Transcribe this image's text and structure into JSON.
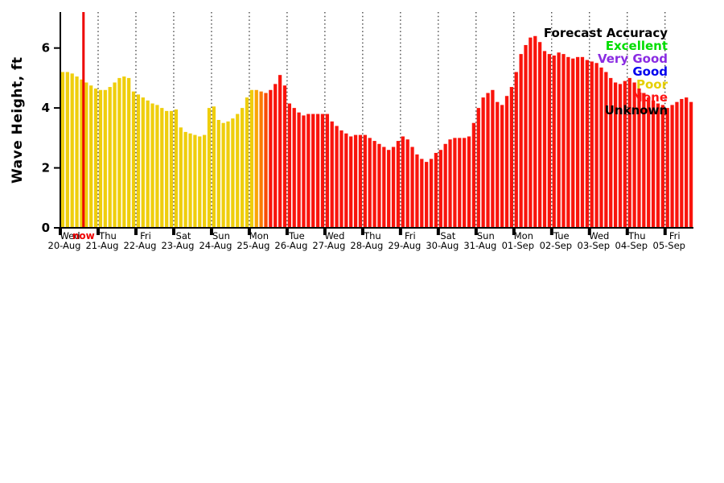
{
  "chart_data": {
    "type": "bar",
    "title": "",
    "ylabel": "Wave Height, ft",
    "xlabel": "",
    "ylim": [
      0,
      7.2
    ],
    "yticks": [
      0,
      2,
      4,
      6
    ],
    "grid": {
      "vertical_day_lines": "dotted"
    },
    "x_axis": {
      "bars_per_day": 8,
      "days": [
        {
          "name": "Wed",
          "date": "20-Aug"
        },
        {
          "name": "Thu",
          "date": "21-Aug"
        },
        {
          "name": "Fri",
          "date": "22-Aug"
        },
        {
          "name": "Sat",
          "date": "23-Aug"
        },
        {
          "name": "Sun",
          "date": "24-Aug"
        },
        {
          "name": "Mon",
          "date": "25-Aug"
        },
        {
          "name": "Tue",
          "date": "26-Aug"
        },
        {
          "name": "Wed",
          "date": "27-Aug"
        },
        {
          "name": "Thu",
          "date": "28-Aug"
        },
        {
          "name": "Fri",
          "date": "29-Aug"
        },
        {
          "name": "Sat",
          "date": "30-Aug"
        },
        {
          "name": "Sun",
          "date": "31-Aug"
        },
        {
          "name": "Mon",
          "date": "01-Sep"
        },
        {
          "name": "Tue",
          "date": "02-Sep"
        },
        {
          "name": "Wed",
          "date": "03-Sep"
        },
        {
          "name": "Thu",
          "date": "04-Sep"
        },
        {
          "name": "Fri",
          "date": "05-Sep"
        }
      ]
    },
    "now_marker": {
      "label": "now",
      "bar_position": 4.9,
      "color": "#ee0000"
    },
    "bar_values": [
      5.2,
      5.2,
      5.15,
      5.05,
      4.95,
      4.85,
      4.75,
      4.65,
      4.6,
      4.6,
      4.7,
      4.85,
      5.0,
      5.05,
      5.0,
      4.55,
      4.45,
      4.35,
      4.25,
      4.15,
      4.1,
      4.0,
      3.9,
      3.9,
      3.95,
      3.35,
      3.2,
      3.15,
      3.1,
      3.05,
      3.1,
      4.0,
      4.05,
      3.6,
      3.5,
      3.55,
      3.65,
      3.8,
      4.0,
      4.35,
      4.6,
      4.6,
      4.55,
      4.5,
      4.6,
      4.8,
      5.1,
      4.75,
      4.15,
      4.0,
      3.85,
      3.75,
      3.8,
      3.8,
      3.8,
      3.8,
      3.8,
      3.55,
      3.4,
      3.25,
      3.15,
      3.05,
      3.1,
      3.1,
      3.1,
      3.0,
      2.9,
      2.8,
      2.7,
      2.6,
      2.7,
      2.9,
      3.05,
      2.95,
      2.7,
      2.45,
      2.3,
      2.2,
      2.3,
      2.5,
      2.6,
      2.8,
      2.95,
      3.0,
      3.0,
      3.0,
      3.05,
      3.5,
      4.0,
      4.35,
      4.5,
      4.6,
      4.2,
      4.1,
      4.4,
      4.7,
      5.2,
      5.8,
      6.1,
      6.35,
      6.4,
      6.2,
      5.9,
      5.8,
      5.75,
      5.85,
      5.8,
      5.7,
      5.65,
      5.7,
      5.7,
      5.6,
      5.55,
      5.5,
      5.35,
      5.2,
      5.0,
      4.85,
      4.8,
      4.9,
      5.0,
      4.85,
      4.65,
      4.5,
      4.35,
      4.25,
      4.15,
      4.1,
      4.0,
      4.1,
      4.2,
      4.3,
      4.35,
      4.2
    ],
    "bar_colors": {
      "segments": [
        {
          "from": 0,
          "to": 40,
          "color": "#efce0c"
        },
        {
          "from": 41,
          "to": 41,
          "color": "#fba405"
        },
        {
          "from": 42,
          "to": 42,
          "color": "#fb7b06"
        },
        {
          "from": 43,
          "to": 43,
          "color": "#f94b07"
        },
        {
          "from": 44,
          "to": 133,
          "color": "#f9140c"
        }
      ]
    },
    "legend": {
      "title": "Forecast Accuracy",
      "position": "top-right",
      "items": [
        {
          "label": "Excellent",
          "color": "#00dd00"
        },
        {
          "label": "Very Good",
          "color": "#8a2be2"
        },
        {
          "label": "Good",
          "color": "#0000ee"
        },
        {
          "label": "Poor",
          "color": "#e6cf00"
        },
        {
          "label": "None",
          "color": "#ff1414"
        },
        {
          "label": "Unknown",
          "color": "#000000"
        }
      ]
    }
  }
}
